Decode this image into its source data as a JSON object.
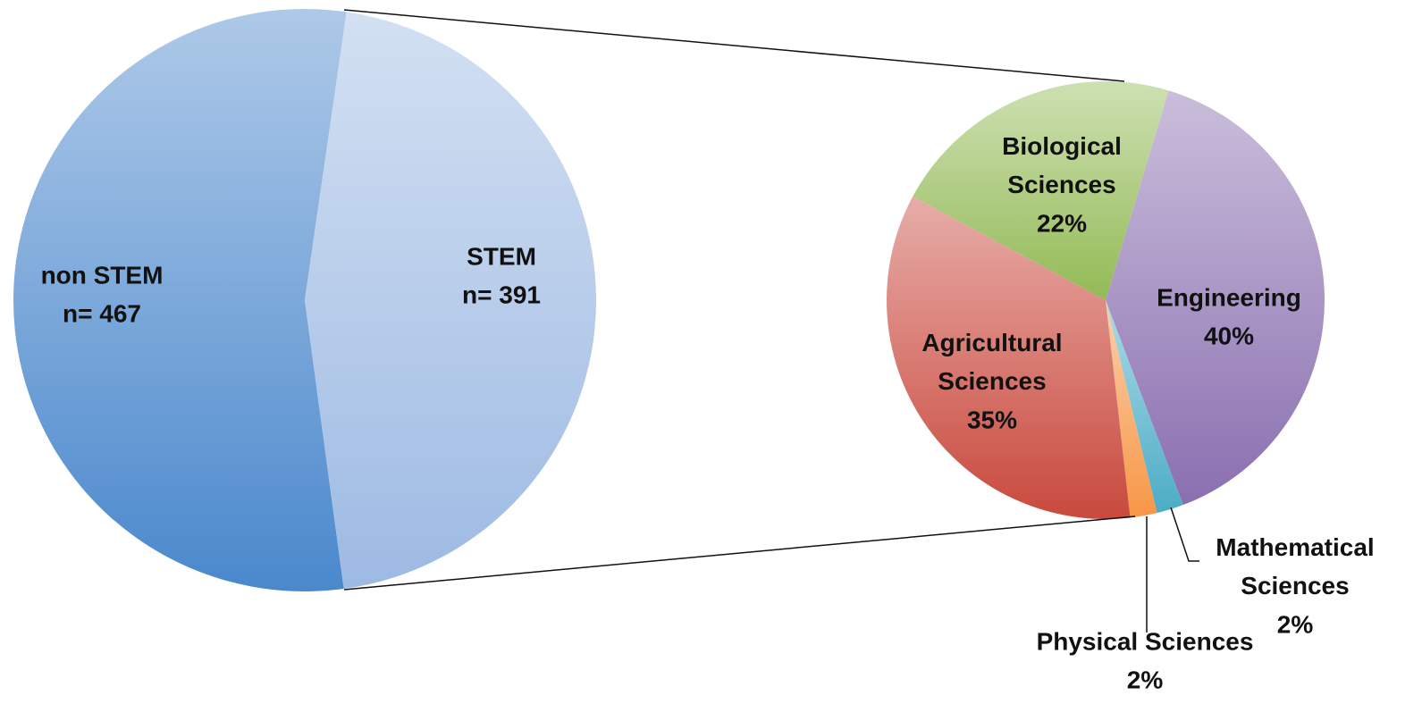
{
  "chart_data": [
    {
      "type": "pie",
      "categories": [
        "non STEM",
        "STEM"
      ],
      "values": [
        467,
        391
      ],
      "value_labels": [
        "n= 467",
        "n= 391"
      ],
      "colors": [
        "#4a88cc",
        "#9dbae3"
      ]
    },
    {
      "type": "pie",
      "categories": [
        "Engineering",
        "Mathematical Sciences",
        "Physical Sciences",
        "Agricultural Sciences",
        "Biological Sciences"
      ],
      "values": [
        40,
        2,
        2,
        35,
        22
      ],
      "value_labels": [
        "40%",
        "2%",
        "2%",
        "35%",
        "22%"
      ],
      "colors": [
        "#8a6fb0",
        "#4bacc6",
        "#f79646",
        "#c9493d",
        "#93ba55"
      ]
    }
  ]
}
